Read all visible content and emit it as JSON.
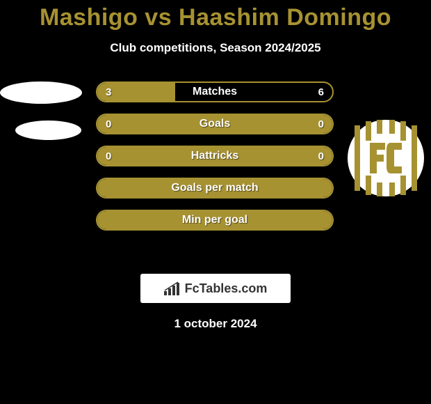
{
  "title_color": "#a79232",
  "title": "Mashigo vs Haashim Domingo",
  "subtitle": "Club competitions, Season 2024/2025",
  "subtitle_color": "#ffffff",
  "colors": {
    "player1": "#a79232",
    "player2": "#a79232",
    "border": "#a79232",
    "text": "#ffffff",
    "background": "#000000"
  },
  "bars": [
    {
      "label": "Matches",
      "left": "3",
      "right": "6",
      "left_pct": 33,
      "right_pct": 67,
      "show_values": true
    },
    {
      "label": "Goals",
      "left": "0",
      "right": "0",
      "left_pct": 0,
      "right_pct": 0,
      "show_values": true,
      "full_fill": true
    },
    {
      "label": "Hattricks",
      "left": "0",
      "right": "0",
      "left_pct": 0,
      "right_pct": 0,
      "show_values": true,
      "full_fill": true
    },
    {
      "label": "Goals per match",
      "left": "",
      "right": "",
      "left_pct": 0,
      "right_pct": 0,
      "show_values": false,
      "full_fill": true
    },
    {
      "label": "Min per goal",
      "left": "",
      "right": "",
      "left_pct": 0,
      "right_pct": 0,
      "show_values": false,
      "full_fill": true
    }
  ],
  "footer_brand": "FcTables.com",
  "footer_date": "1 october 2024",
  "club_badge": {
    "bg": "#ffffff",
    "stripe": "#a79232",
    "letters": "FC"
  }
}
